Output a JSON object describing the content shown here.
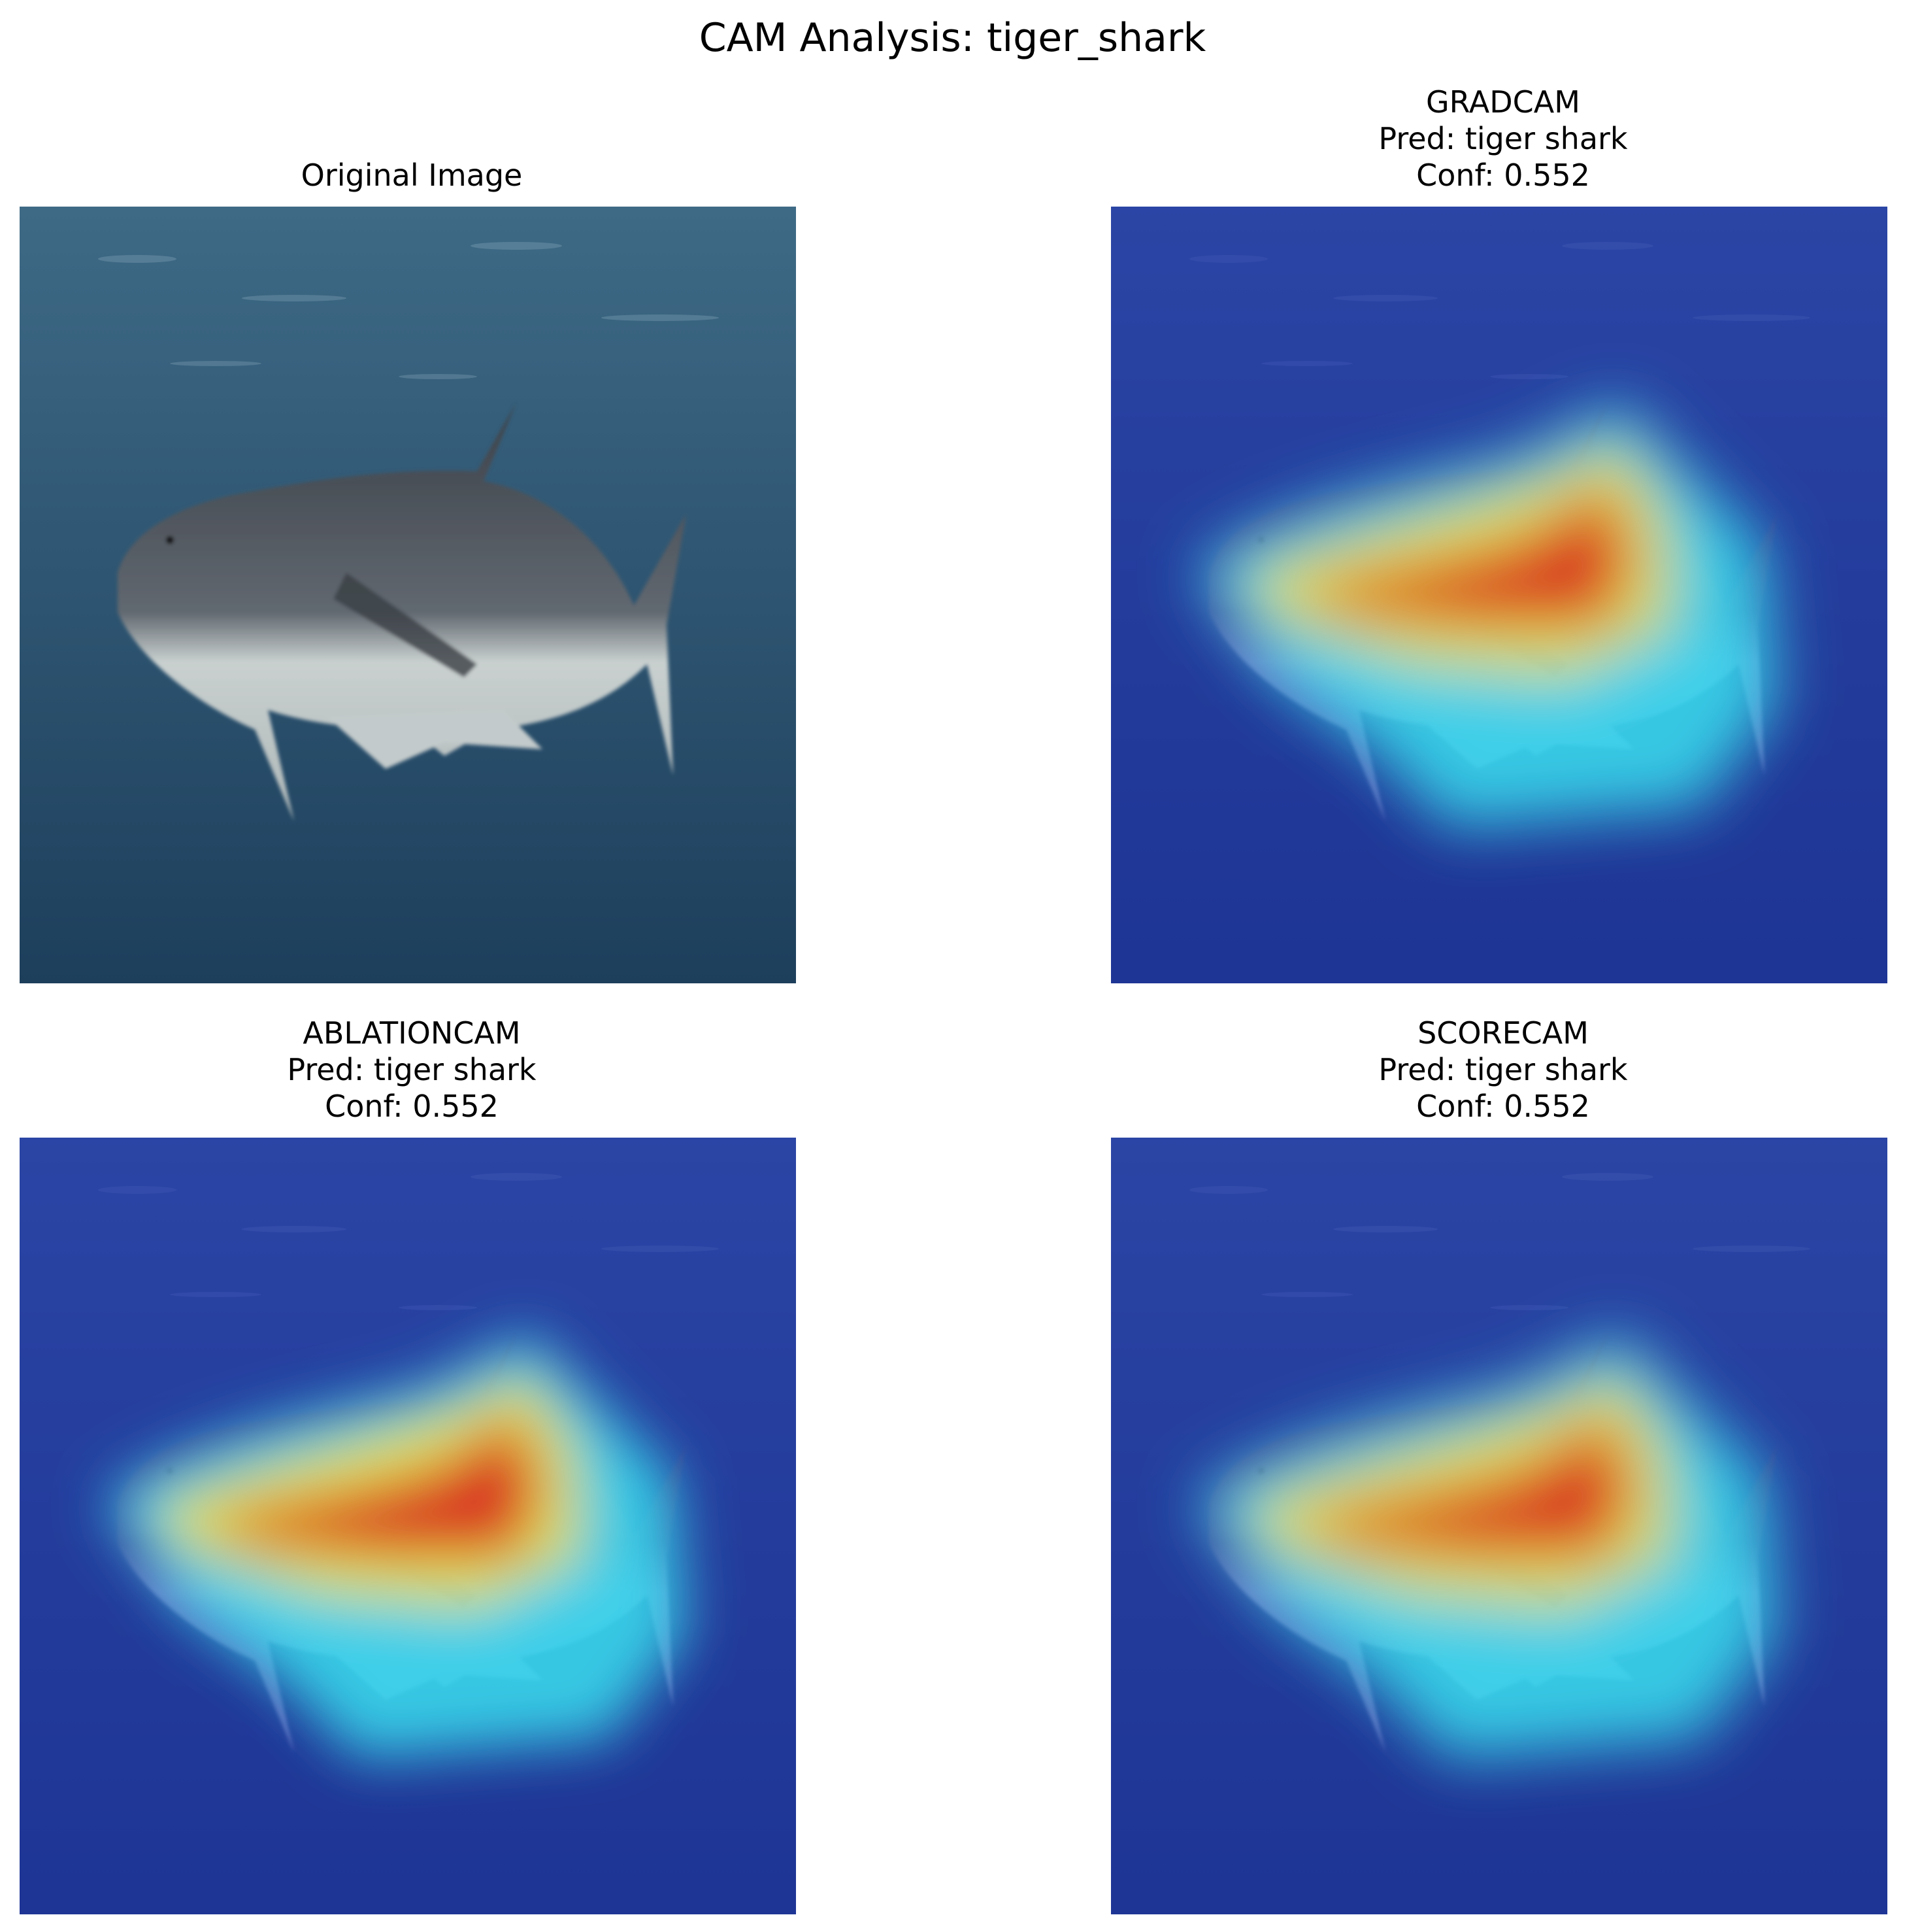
{
  "figure": {
    "title": "CAM Analysis: tiger_shark"
  },
  "panels": [
    {
      "id": "original",
      "lines": [
        "Original Image"
      ],
      "overlay": false
    },
    {
      "id": "gradcam",
      "lines": [
        "GRADCAM",
        "Pred: tiger shark",
        "Conf: 0.552"
      ],
      "overlay": true,
      "variant": "a"
    },
    {
      "id": "ablationcam",
      "lines": [
        "ABLATIONCAM",
        "Pred: tiger shark",
        "Conf: 0.552"
      ],
      "overlay": true,
      "variant": "b"
    },
    {
      "id": "scorecam",
      "lines": [
        "SCORECAM",
        "Pred: tiger shark",
        "Conf: 0.552"
      ],
      "overlay": true,
      "variant": "a"
    }
  ],
  "colors": {
    "water_top": "#3e6a86",
    "water_bottom": "#1d3f5c",
    "overlay_blue": "#1e2fb8",
    "heat_cyan": "#38e0f0",
    "heat_yellow": "#f5e23a",
    "heat_red": "#d81e1e"
  }
}
